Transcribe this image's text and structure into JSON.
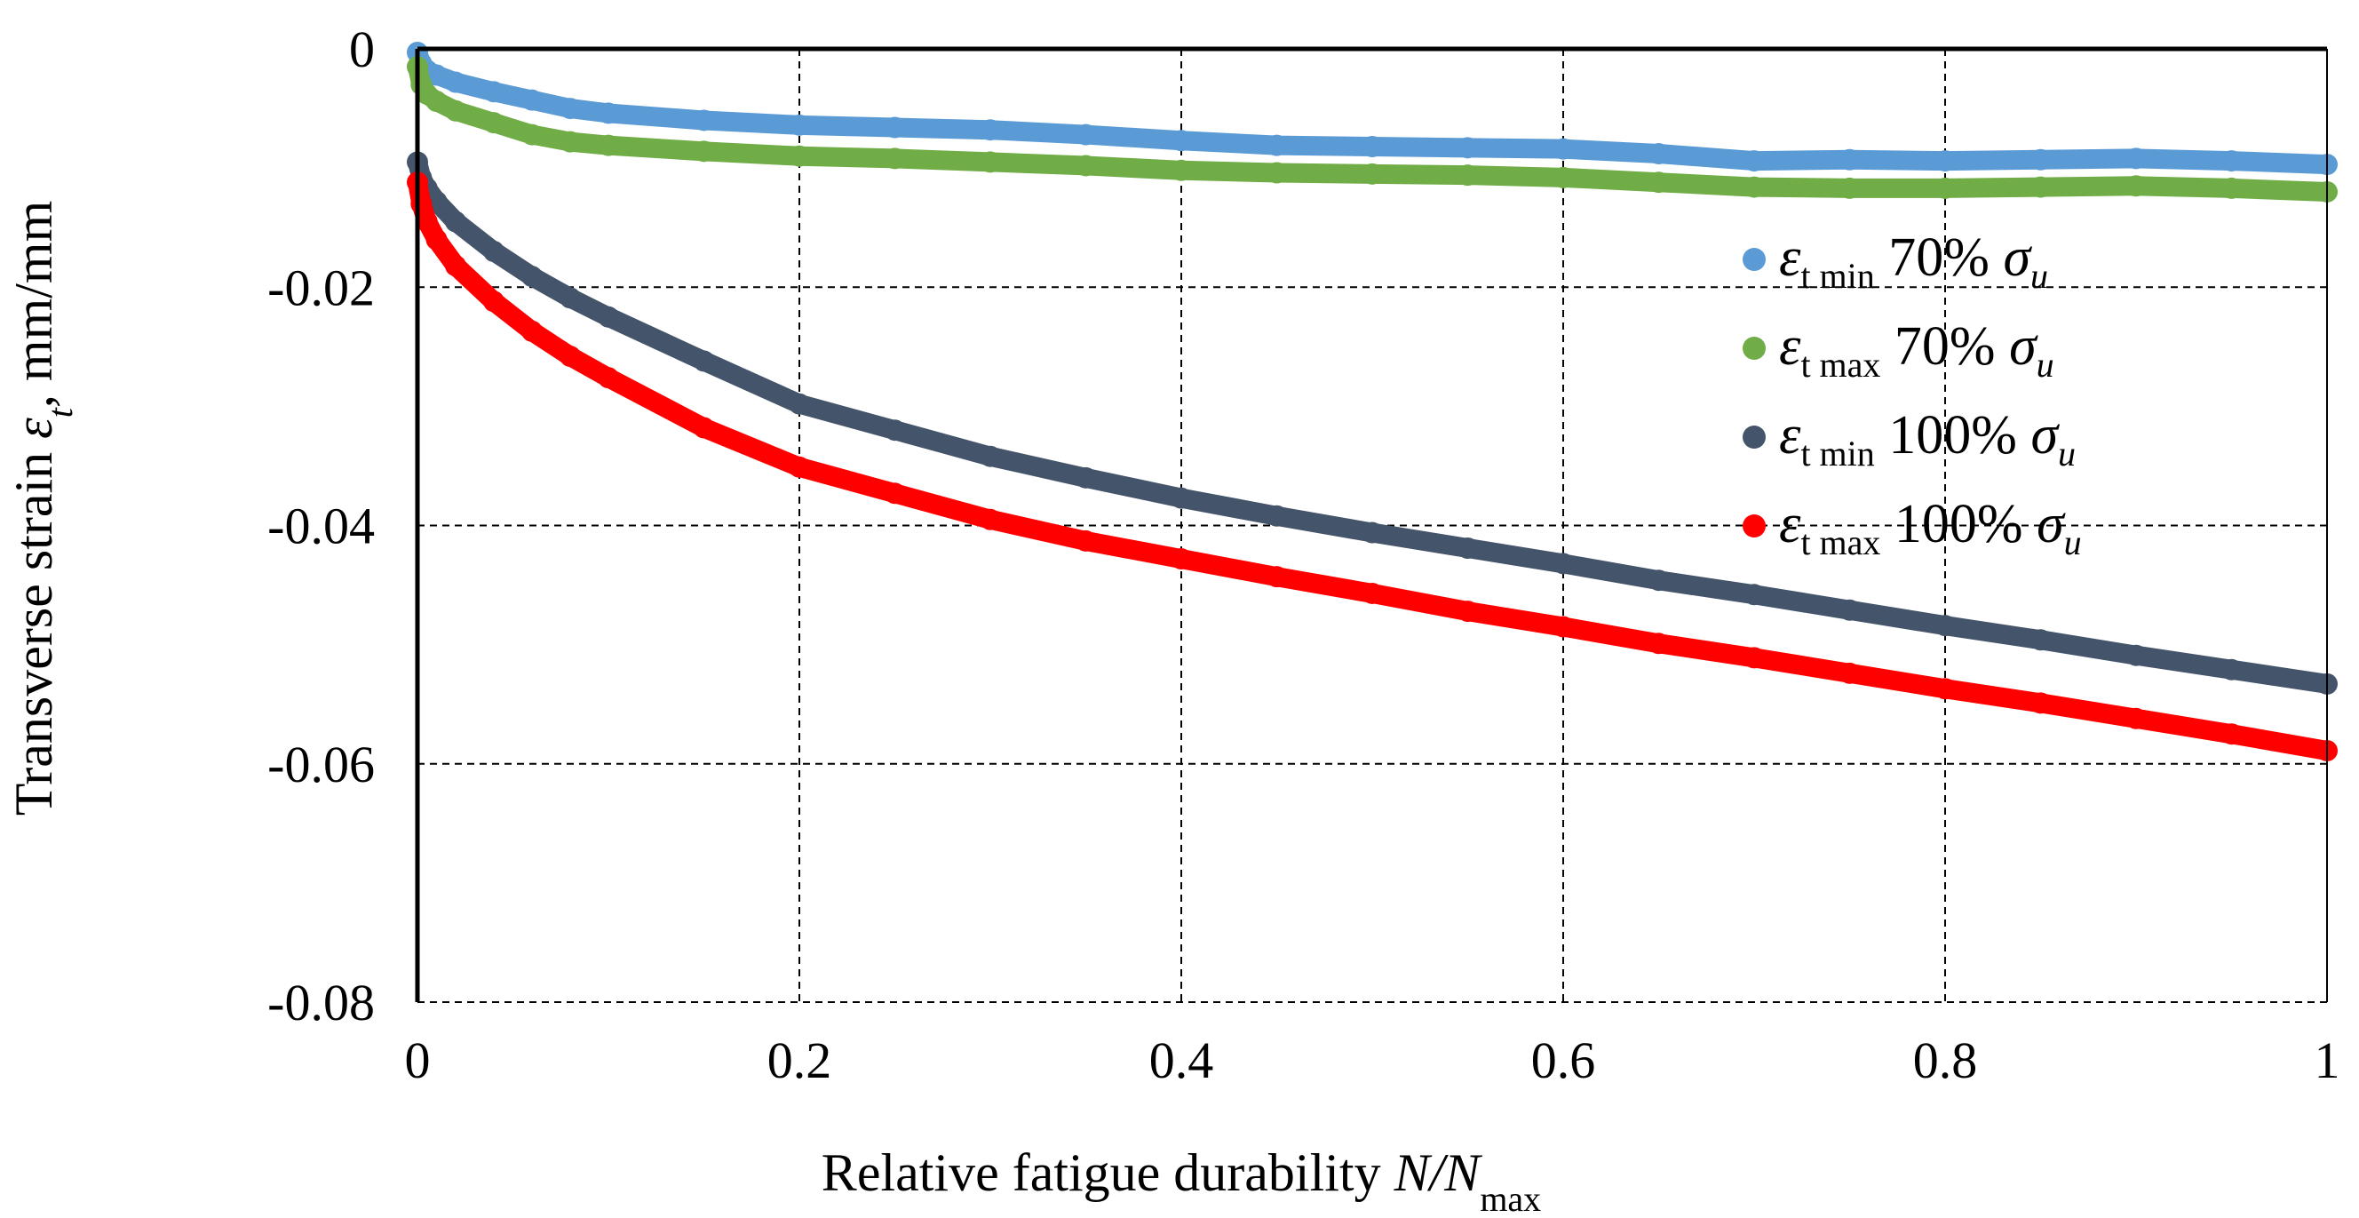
{
  "chart_data": {
    "type": "scatter",
    "xlabel": "Relative fatigue durability",
    "xlabel_var": "N/N",
    "xlabel_sub": "max",
    "ylabel": "Transverse strain",
    "ylabel_symbol": "ε",
    "ylabel_sub": "t",
    "ylabel_unit": ", mm/mm",
    "xlim": [
      0,
      1
    ],
    "ylim": [
      -0.08,
      0
    ],
    "grid": true,
    "legend_position": "right",
    "x_ticks": [
      {
        "value": 0,
        "label": "0"
      },
      {
        "value": 0.2,
        "label": "0.2"
      },
      {
        "value": 0.4,
        "label": "0.4"
      },
      {
        "value": 0.6,
        "label": "0.6"
      },
      {
        "value": 0.8,
        "label": "0.8"
      },
      {
        "value": 1,
        "label": "1"
      }
    ],
    "y_ticks": [
      {
        "value": 0,
        "label": "0"
      },
      {
        "value": -0.02,
        "label": "-0.02"
      },
      {
        "value": -0.04,
        "label": "-0.04"
      },
      {
        "value": -0.06,
        "label": "-0.06"
      },
      {
        "value": -0.08,
        "label": "-0.08"
      }
    ],
    "series": [
      {
        "name": "εt min 70% σu",
        "symbol": "ε",
        "sub": "t min",
        "level": "70%",
        "stress": "σ",
        "stress_sub": "u",
        "color": "#5B9BD5",
        "points": [
          [
            0,
            -0.0003
          ],
          [
            0.002,
            -0.0012
          ],
          [
            0.005,
            -0.0018
          ],
          [
            0.01,
            -0.0022
          ],
          [
            0.02,
            -0.0028
          ],
          [
            0.04,
            -0.0036
          ],
          [
            0.06,
            -0.0043
          ],
          [
            0.08,
            -0.005
          ],
          [
            0.1,
            -0.0054
          ],
          [
            0.15,
            -0.006
          ],
          [
            0.2,
            -0.0064
          ],
          [
            0.25,
            -0.0066
          ],
          [
            0.3,
            -0.0068
          ],
          [
            0.35,
            -0.0072
          ],
          [
            0.4,
            -0.0077
          ],
          [
            0.45,
            -0.0081
          ],
          [
            0.5,
            -0.0082
          ],
          [
            0.55,
            -0.0083
          ],
          [
            0.6,
            -0.0084
          ],
          [
            0.65,
            -0.0088
          ],
          [
            0.7,
            -0.0094
          ],
          [
            0.75,
            -0.0093
          ],
          [
            0.8,
            -0.0094
          ],
          [
            0.85,
            -0.0093
          ],
          [
            0.9,
            -0.0092
          ],
          [
            0.95,
            -0.0094
          ],
          [
            1.0,
            -0.0097
          ]
        ]
      },
      {
        "name": "εt max 70% σu",
        "symbol": "ε",
        "sub": "t max",
        "level": "70%",
        "stress": "σ",
        "stress_sub": "u",
        "color": "#70AD47",
        "points": [
          [
            0,
            -0.0015
          ],
          [
            0.002,
            -0.003
          ],
          [
            0.005,
            -0.0038
          ],
          [
            0.01,
            -0.0044
          ],
          [
            0.02,
            -0.0052
          ],
          [
            0.04,
            -0.0062
          ],
          [
            0.06,
            -0.0072
          ],
          [
            0.08,
            -0.0078
          ],
          [
            0.1,
            -0.0081
          ],
          [
            0.15,
            -0.0086
          ],
          [
            0.2,
            -0.009
          ],
          [
            0.25,
            -0.0092
          ],
          [
            0.3,
            -0.0095
          ],
          [
            0.35,
            -0.0098
          ],
          [
            0.4,
            -0.0102
          ],
          [
            0.45,
            -0.0104
          ],
          [
            0.5,
            -0.0105
          ],
          [
            0.55,
            -0.0106
          ],
          [
            0.6,
            -0.0108
          ],
          [
            0.65,
            -0.0112
          ],
          [
            0.7,
            -0.0116
          ],
          [
            0.75,
            -0.0117
          ],
          [
            0.8,
            -0.0117
          ],
          [
            0.85,
            -0.0116
          ],
          [
            0.9,
            -0.0115
          ],
          [
            0.95,
            -0.0117
          ],
          [
            1.0,
            -0.012
          ]
        ]
      },
      {
        "name": "εt min 100% σu",
        "symbol": "ε",
        "sub": "t min",
        "level": "100%",
        "stress": "σ",
        "stress_sub": "u",
        "color": "#44546A",
        "points": [
          [
            0,
            -0.0095
          ],
          [
            0.002,
            -0.0108
          ],
          [
            0.005,
            -0.0117
          ],
          [
            0.01,
            -0.0128
          ],
          [
            0.02,
            -0.0145
          ],
          [
            0.04,
            -0.017
          ],
          [
            0.06,
            -0.0191
          ],
          [
            0.08,
            -0.0209
          ],
          [
            0.1,
            -0.0225
          ],
          [
            0.15,
            -0.0262
          ],
          [
            0.2,
            -0.0298
          ],
          [
            0.25,
            -0.032
          ],
          [
            0.3,
            -0.0342
          ],
          [
            0.35,
            -0.036
          ],
          [
            0.4,
            -0.0377
          ],
          [
            0.45,
            -0.0392
          ],
          [
            0.5,
            -0.0406
          ],
          [
            0.55,
            -0.0419
          ],
          [
            0.6,
            -0.0432
          ],
          [
            0.65,
            -0.0446
          ],
          [
            0.7,
            -0.0458
          ],
          [
            0.75,
            -0.0471
          ],
          [
            0.8,
            -0.0484
          ],
          [
            0.85,
            -0.0496
          ],
          [
            0.9,
            -0.0509
          ],
          [
            0.95,
            -0.0521
          ],
          [
            1.0,
            -0.0533
          ]
        ]
      },
      {
        "name": "εt max 100% σu",
        "symbol": "ε",
        "sub": "t max",
        "level": "100%",
        "stress": "σ",
        "stress_sub": "u",
        "color": "#FF0000",
        "points": [
          [
            0,
            -0.0112
          ],
          [
            0.002,
            -0.013
          ],
          [
            0.005,
            -0.0145
          ],
          [
            0.01,
            -0.016
          ],
          [
            0.02,
            -0.0182
          ],
          [
            0.04,
            -0.0212
          ],
          [
            0.06,
            -0.0237
          ],
          [
            0.08,
            -0.0258
          ],
          [
            0.1,
            -0.0276
          ],
          [
            0.15,
            -0.0318
          ],
          [
            0.2,
            -0.0351
          ],
          [
            0.25,
            -0.0373
          ],
          [
            0.3,
            -0.0395
          ],
          [
            0.35,
            -0.0413
          ],
          [
            0.4,
            -0.0428
          ],
          [
            0.45,
            -0.0443
          ],
          [
            0.5,
            -0.0457
          ],
          [
            0.55,
            -0.0472
          ],
          [
            0.6,
            -0.0485
          ],
          [
            0.65,
            -0.0499
          ],
          [
            0.7,
            -0.0511
          ],
          [
            0.75,
            -0.0524
          ],
          [
            0.8,
            -0.0537
          ],
          [
            0.85,
            -0.0549
          ],
          [
            0.9,
            -0.0562
          ],
          [
            0.95,
            -0.0575
          ],
          [
            1.0,
            -0.0589
          ]
        ]
      }
    ]
  }
}
